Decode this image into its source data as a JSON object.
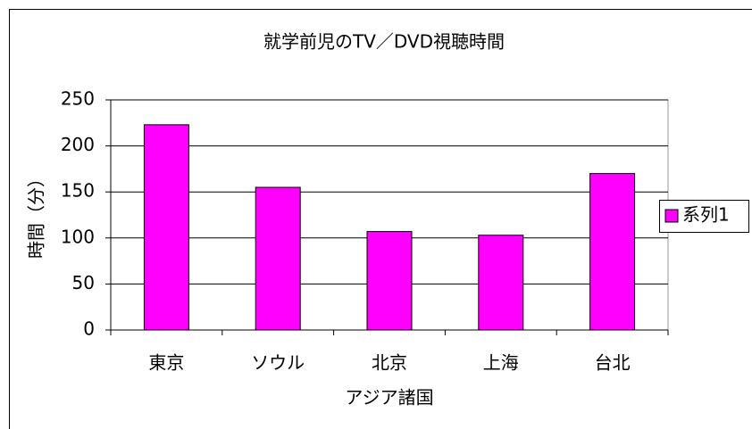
{
  "chart_data": {
    "type": "bar",
    "title": "就学前児のTV／DVD視聴時間",
    "x_label": "アジア諸国",
    "y_label": "時間（分）",
    "categories": [
      "東京",
      "ソウル",
      "北京",
      "上海",
      "台北"
    ],
    "series": [
      {
        "name": "系列1",
        "color": "#ff00ff",
        "values": [
          223,
          155,
          107,
          103,
          170
        ]
      }
    ],
    "ylim": [
      0,
      250
    ],
    "yticks": [
      0,
      50,
      100,
      150,
      200,
      250
    ],
    "grid": true,
    "legend": "right"
  }
}
